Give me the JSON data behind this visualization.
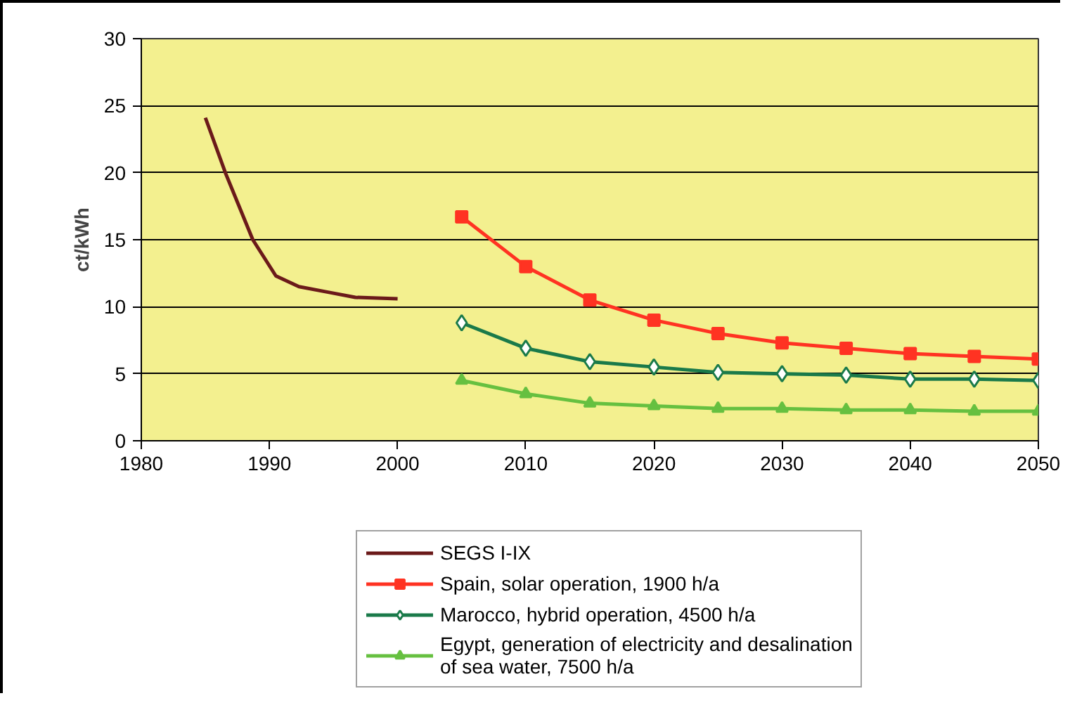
{
  "chart_data": {
    "type": "line",
    "ylabel": "ct/kWh",
    "xlim": [
      1980,
      2050
    ],
    "xticks": [
      1980,
      1990,
      2000,
      2010,
      2020,
      2030,
      2040,
      2050
    ],
    "ylim": [
      0,
      30
    ],
    "yticks": [
      0,
      5,
      10,
      15,
      20,
      25,
      30
    ],
    "grid": "y",
    "legend": "bottom",
    "series": [
      {
        "name": "SEGS I-IX",
        "color": "#6b1a1a",
        "marker": "none",
        "x": [
          1985,
          1986.6,
          1988.7,
          1990.5,
          1992.3,
          1994.5,
          1996.7,
          2000
        ],
        "values": [
          24.1,
          19.9,
          15.0,
          12.3,
          11.5,
          11.1,
          10.7,
          10.6
        ]
      },
      {
        "name": "Spain, solar operation, 1900 h/a",
        "color": "#ff3322",
        "marker": "square",
        "x": [
          2005,
          2010,
          2015,
          2020,
          2025,
          2030,
          2035,
          2040,
          2045,
          2050
        ],
        "values": [
          16.7,
          13.0,
          10.5,
          9.0,
          8.0,
          7.3,
          6.9,
          6.5,
          6.3,
          6.1
        ]
      },
      {
        "name": "Marocco, hybrid operation, 4500 h/a",
        "color": "#1a7a4a",
        "marker": "diamond",
        "x": [
          2005,
          2010,
          2015,
          2020,
          2025,
          2030,
          2035,
          2040,
          2045,
          2050
        ],
        "values": [
          8.8,
          6.9,
          5.9,
          5.5,
          5.1,
          5.0,
          4.9,
          4.6,
          4.6,
          4.5
        ]
      },
      {
        "name": "Egypt, generation of electricity and desalination of sea water, 7500 h/a",
        "color": "#66c040",
        "marker": "triangle",
        "x": [
          2005,
          2010,
          2015,
          2020,
          2025,
          2030,
          2035,
          2040,
          2045,
          2050
        ],
        "values": [
          4.5,
          3.5,
          2.8,
          2.6,
          2.4,
          2.4,
          2.3,
          2.3,
          2.2,
          2.2
        ]
      }
    ]
  }
}
